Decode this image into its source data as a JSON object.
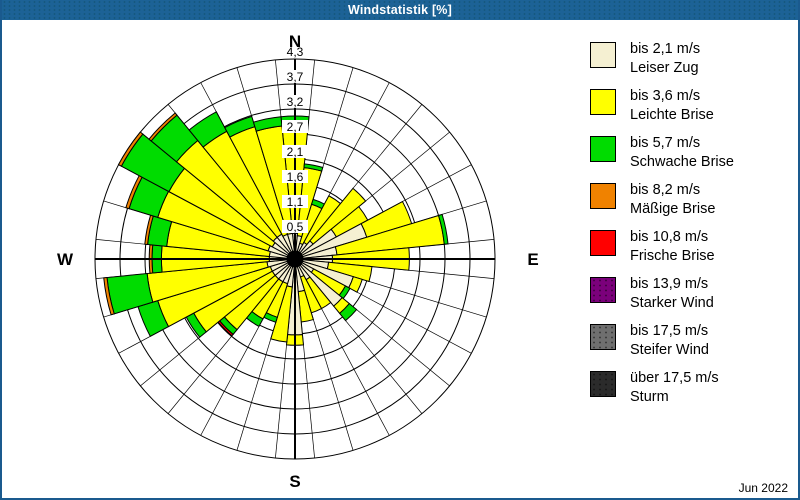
{
  "window_title": "Windstatistik [%]",
  "footer": {
    "date": "Jun 2022"
  },
  "compass": {
    "north": "N",
    "east": "E",
    "south": "S",
    "west": "W"
  },
  "colors": {
    "titlebar": "#1c6296",
    "frame": "#1a5a8e",
    "grid": "#000000",
    "panel": "#ffffff"
  },
  "legend": [
    {
      "speed": "bis 2,1 m/s",
      "name": "Leiser Zug",
      "color": "#f5f0d2",
      "dotted": false
    },
    {
      "speed": "bis 3,6 m/s",
      "name": "Leichte Brise",
      "color": "#ffff00",
      "dotted": false
    },
    {
      "speed": "bis 5,7 m/s",
      "name": "Schwache Brise",
      "color": "#00dc00",
      "dotted": false
    },
    {
      "speed": "bis 8,2 m/s",
      "name": "Mäßige Brise",
      "color": "#f08200",
      "dotted": false
    },
    {
      "speed": "bis 10,8 m/s",
      "name": "Frische Brise",
      "color": "#ff0000",
      "dotted": false
    },
    {
      "speed": "bis 13,9 m/s",
      "name": "Starker Wind",
      "color": "#7b007b",
      "dotted": true
    },
    {
      "speed": "bis 17,5 m/s",
      "name": "Steifer Wind",
      "color": "#6f6f6f",
      "dotted": true
    },
    {
      "speed": "über 17,5 m/s",
      "name": "Sturm",
      "color": "#2b2b2b",
      "dotted": true
    }
  ],
  "chart_data": {
    "type": "bar",
    "subtype": "polar_windrose_stacked",
    "units": "%",
    "sector_width_deg": 11.25,
    "ylim": [
      0,
      4.2667
    ],
    "grid": true,
    "legend_position": "right",
    "ring_values": [
      0.533,
      1.067,
      1.6,
      2.133,
      2.667,
      3.2,
      3.733,
      4.267
    ],
    "ring_tick_labels": [
      "0,5",
      "1,1",
      "1,6",
      "2,1",
      "2,7",
      "3,2",
      "3,7",
      "4,3"
    ],
    "directions_deg": [
      0,
      11.25,
      22.5,
      33.75,
      45,
      56.25,
      67.5,
      78.75,
      90,
      101.25,
      112.5,
      123.75,
      135,
      146.25,
      157.5,
      168.75,
      180,
      191.25,
      202.5,
      213.75,
      225,
      236.25,
      247.5,
      258.75,
      270,
      281.25,
      292.5,
      303.75,
      315,
      326.25,
      337.5,
      348.75
    ],
    "series": [
      {
        "name": "bis 2,1 m/s Leiser Zug",
        "color": "#f5f0d2",
        "values": [
          0.55,
          0.5,
          0.35,
          0.4,
          0.5,
          1.0,
          1.6,
          0.9,
          0.8,
          0.72,
          1.3,
          0.45,
          1.3,
          0.5,
          0.4,
          0.7,
          1.62,
          0.6,
          0.55,
          0.55,
          0.55,
          0.55,
          0.55,
          0.6,
          0.55,
          0.55,
          0.6,
          0.55,
          0.6,
          0.6,
          0.55,
          0.55
        ]
      },
      {
        "name": "bis 3,6 m/s Leichte Brise",
        "color": "#ffff00",
        "values": [
          2.3,
          1.46,
          0.87,
          1.13,
          1.45,
          0.76,
          1.0,
          2.3,
          1.64,
          0.93,
          0.2,
          0.77,
          0.2,
          0.7,
          0.8,
          0.65,
          0.22,
          1.18,
          0.75,
          0.9,
          1.4,
          1.9,
          2.51,
          2.57,
          2.3,
          2.2,
          2.46,
          2.5,
          2.67,
          2.49,
          2.4,
          2.3
        ]
      },
      {
        "name": "bis 5,7 m/s Schwache Brise",
        "color": "#00dc00",
        "values": [
          0.2,
          0.08,
          0.11,
          0,
          0,
          0,
          0,
          0.08,
          0,
          0,
          0,
          0.11,
          0.2,
          0,
          0,
          0,
          0,
          0,
          0.11,
          0.18,
          0.13,
          0.18,
          0.44,
          0.86,
          0.2,
          0.41,
          0.64,
          1.15,
          0.7,
          0.47,
          0.23,
          0.2
        ]
      },
      {
        "name": "bis 8,2 m/s Mäßige Brise",
        "color": "#f08200",
        "values": [
          0,
          0,
          0,
          0,
          0,
          0,
          0,
          0,
          0,
          0,
          0,
          0,
          0,
          0,
          0,
          0,
          0,
          0,
          0,
          0,
          0,
          0,
          0,
          0.07,
          0.06,
          0.06,
          0.07,
          0.07,
          0.06,
          0,
          0,
          0
        ]
      },
      {
        "name": "bis 10,8 m/s Frische Brise",
        "color": "#ff0000",
        "values": [
          0,
          0,
          0,
          0,
          0,
          0,
          0,
          0,
          0,
          0,
          0,
          0,
          0,
          0,
          0,
          0,
          0,
          0,
          0,
          0,
          0.04,
          0,
          0,
          0,
          0,
          0,
          0,
          0,
          0,
          0,
          0,
          0
        ]
      },
      {
        "name": "bis 13,9 m/s Starker Wind",
        "color": "#7b007b",
        "values": [
          0,
          0,
          0,
          0,
          0,
          0,
          0,
          0,
          0,
          0,
          0,
          0,
          0,
          0,
          0,
          0,
          0,
          0,
          0,
          0,
          0,
          0,
          0,
          0,
          0,
          0,
          0,
          0,
          0,
          0,
          0,
          0
        ]
      },
      {
        "name": "bis 17,5 m/s Steifer Wind",
        "color": "#6f6f6f",
        "values": [
          0,
          0,
          0,
          0,
          0,
          0,
          0,
          0,
          0,
          0,
          0,
          0,
          0,
          0,
          0,
          0,
          0,
          0,
          0,
          0,
          0,
          0,
          0,
          0,
          0,
          0,
          0,
          0,
          0,
          0,
          0,
          0
        ]
      },
      {
        "name": "über 17,5 m/s Sturm",
        "color": "#2b2b2b",
        "values": [
          0,
          0,
          0,
          0,
          0,
          0,
          0,
          0,
          0,
          0,
          0,
          0,
          0,
          0,
          0,
          0,
          0,
          0,
          0,
          0,
          0,
          0,
          0,
          0,
          0,
          0,
          0,
          0,
          0,
          0,
          0,
          0
        ]
      }
    ]
  }
}
